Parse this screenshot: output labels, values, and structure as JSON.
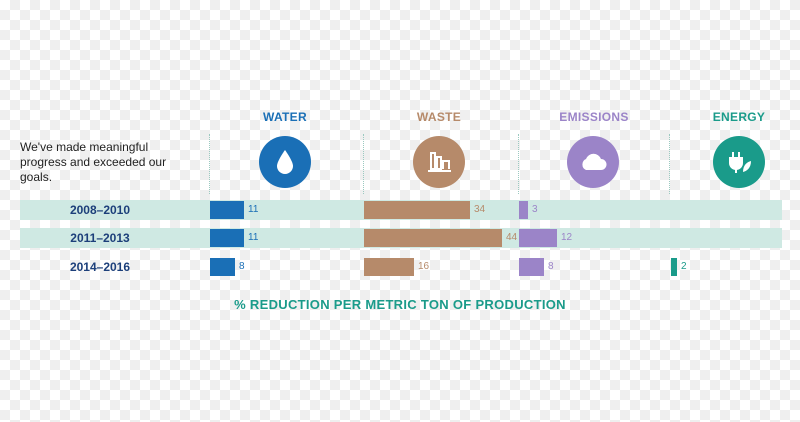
{
  "intro_text": "We've made meaningful progress and exceeded our goals.",
  "chart_data": {
    "type": "bar",
    "title": "",
    "xlabel": "% REDUCTION PER METRIC TON OF PRODUCTION",
    "categories": [
      "2008–2010",
      "2011–2013",
      "2014–2016"
    ],
    "series": [
      {
        "name": "WATER",
        "color": "#1a6fb6",
        "icon": "water-drop-icon",
        "values": [
          11,
          11,
          8
        ]
      },
      {
        "name": "WASTE",
        "color": "#b68a6a",
        "icon": "factory-icon",
        "values": [
          34,
          44,
          16
        ]
      },
      {
        "name": "EMISSIONS",
        "color": "#9b84c8",
        "icon": "cloud-icon",
        "values": [
          3,
          12,
          8
        ]
      },
      {
        "name": "ENERGY",
        "color": "#1a9b8a",
        "icon": "plug-leaf-icon",
        "values": [
          null,
          null,
          2
        ]
      }
    ]
  },
  "colors": {
    "band": "#cfe9e3",
    "row_label": "#1c3f7a",
    "footer": "#1a9b8a"
  }
}
